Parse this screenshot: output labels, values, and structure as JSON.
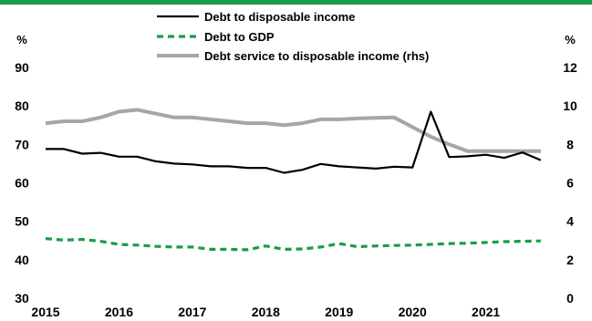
{
  "chart_data": {
    "type": "line",
    "title": "",
    "left_unit": "%",
    "right_unit": "%",
    "ylim_left": [
      30,
      90
    ],
    "yticks_left": [
      30,
      40,
      50,
      60,
      70,
      80,
      90
    ],
    "ylim_right": [
      0,
      12
    ],
    "yticks_right": [
      0,
      2,
      4,
      6,
      8,
      10,
      12
    ],
    "xlim": [
      2015,
      2021.875
    ],
    "xticks": [
      "2015",
      "2016",
      "2017",
      "2018",
      "2019",
      "2020",
      "2021"
    ],
    "grid": false,
    "legend_position": "top-center",
    "colors": {
      "accent_bar": "#1a9c4a"
    },
    "series": [
      {
        "name": "Debt to disposable income",
        "axis": "left",
        "color": "#000000",
        "style": "solid",
        "x": [
          2015.0,
          2015.25,
          2015.5,
          2015.75,
          2016.0,
          2016.25,
          2016.5,
          2016.75,
          2017.0,
          2017.25,
          2017.5,
          2017.75,
          2018.0,
          2018.25,
          2018.5,
          2018.75,
          2019.0,
          2019.25,
          2019.5,
          2019.75,
          2020.0,
          2020.25,
          2020.5,
          2020.75,
          2021.0,
          2021.25,
          2021.5,
          2021.75
        ],
        "values": [
          68.8,
          68.8,
          67.6,
          67.8,
          66.8,
          66.8,
          65.6,
          65.0,
          64.8,
          64.3,
          64.3,
          63.9,
          63.9,
          62.6,
          63.4,
          64.9,
          64.3,
          64.0,
          63.7,
          64.2,
          64.0,
          78.5,
          66.7,
          66.9,
          67.3,
          66.5,
          67.9,
          65.9
        ]
      },
      {
        "name": "Debt to GDP",
        "axis": "left",
        "color": "#1a9c4a",
        "style": "dashed",
        "x": [
          2015.0,
          2015.25,
          2015.5,
          2015.75,
          2016.0,
          2016.25,
          2016.5,
          2016.75,
          2017.0,
          2017.25,
          2017.5,
          2017.75,
          2018.0,
          2018.25,
          2018.5,
          2018.75,
          2019.0,
          2019.25,
          2019.5,
          2019.75,
          2020.0,
          2020.25,
          2020.5,
          2020.75,
          2021.0,
          2021.25,
          2021.5,
          2021.75
        ],
        "values": [
          45.5,
          45.1,
          45.3,
          44.8,
          44.0,
          43.8,
          43.5,
          43.3,
          43.3,
          42.7,
          42.7,
          42.6,
          43.6,
          42.7,
          42.8,
          43.3,
          44.2,
          43.4,
          43.6,
          43.7,
          43.8,
          44.0,
          44.2,
          44.3,
          44.5,
          44.7,
          44.8,
          44.9
        ]
      },
      {
        "name": "Debt service to disposable income (rhs)",
        "axis": "right",
        "color": "#a6a6a6",
        "style": "solid",
        "x": [
          2015.0,
          2015.25,
          2015.5,
          2015.75,
          2016.0,
          2016.25,
          2016.5,
          2016.75,
          2017.0,
          2017.25,
          2017.5,
          2017.75,
          2018.0,
          2018.25,
          2018.5,
          2018.75,
          2019.0,
          2019.25,
          2019.5,
          2019.75,
          2020.0,
          2020.25,
          2020.5,
          2020.75,
          2021.0,
          2021.25,
          2021.5,
          2021.75
        ],
        "values": [
          9.1,
          9.2,
          9.2,
          9.4,
          9.7,
          9.8,
          9.6,
          9.4,
          9.4,
          9.3,
          9.2,
          9.1,
          9.1,
          9.0,
          9.1,
          9.3,
          9.3,
          9.35,
          9.38,
          9.4,
          8.9,
          8.4,
          8.0,
          7.65,
          7.65,
          7.65,
          7.65,
          7.65
        ]
      }
    ]
  }
}
